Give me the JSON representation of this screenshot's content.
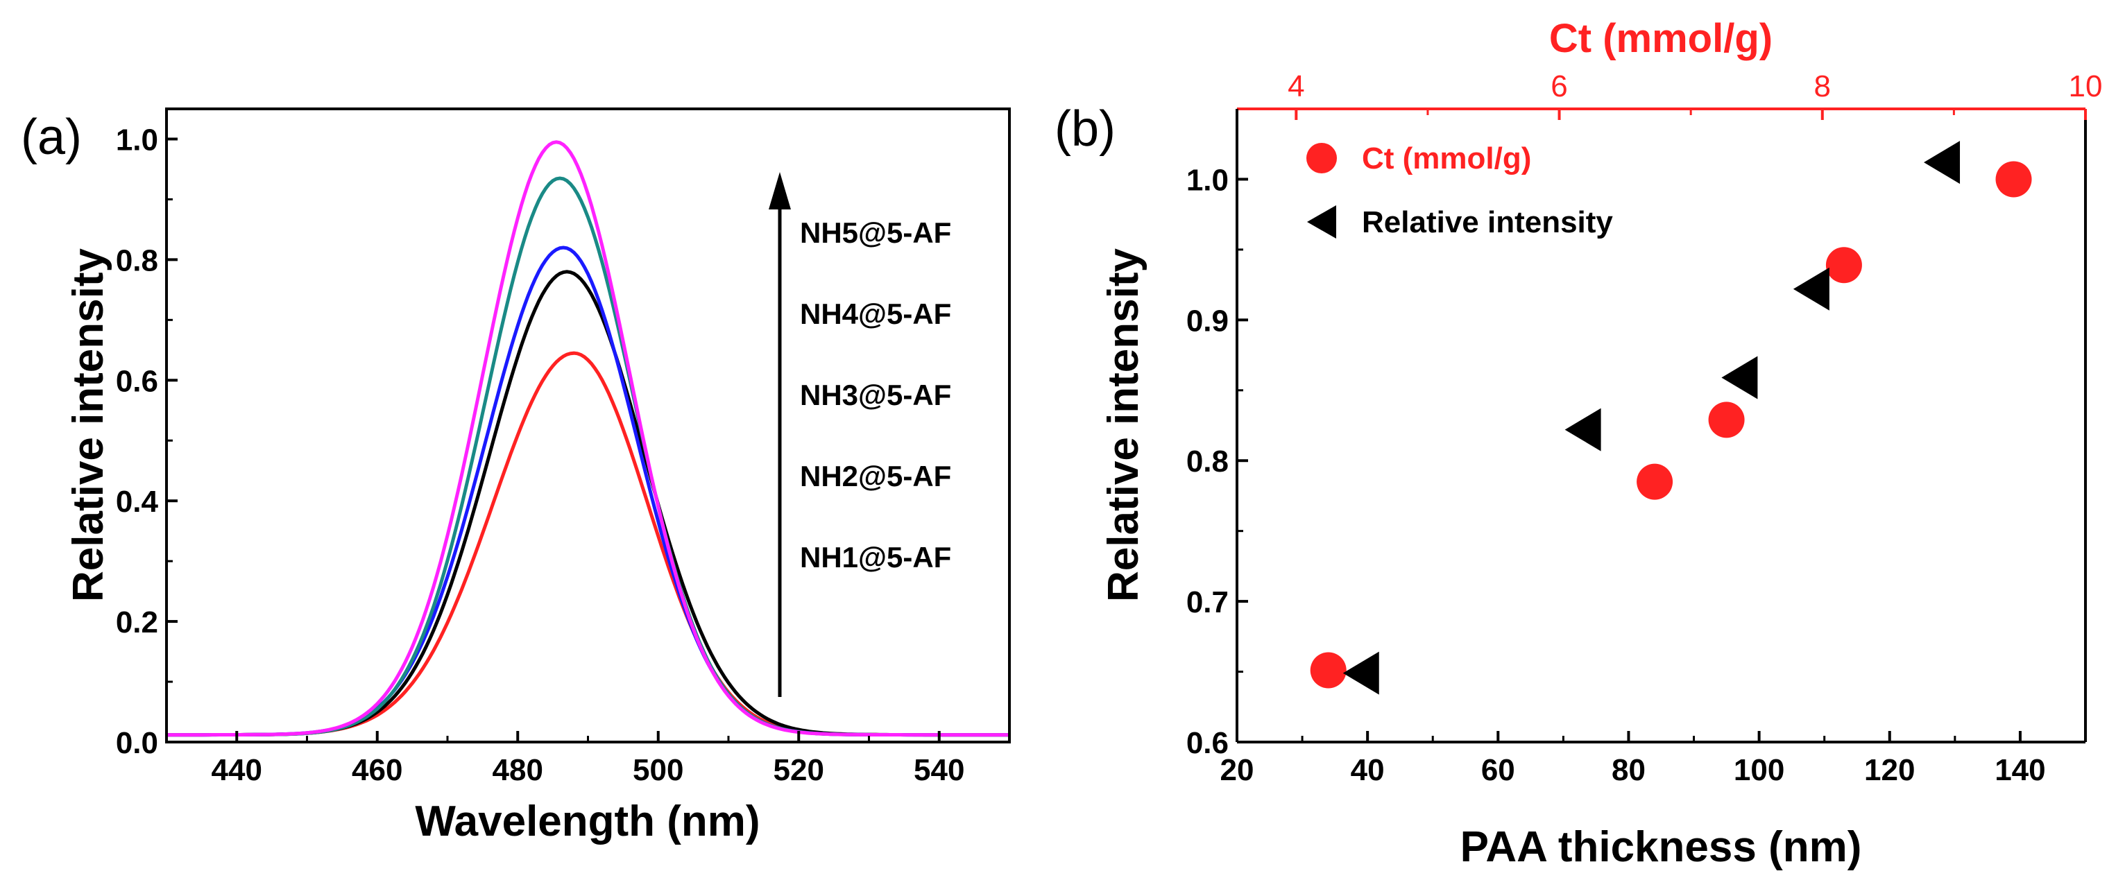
{
  "chart_data": [
    {
      "panel_label": "(a)",
      "type": "line",
      "xlabel": "Wavelength (nm)",
      "ylabel": "Relative intensity",
      "xlim": [
        430,
        550
      ],
      "ylim": [
        0.0,
        1.05
      ],
      "x_ticks": [
        "440",
        "460",
        "480",
        "500",
        "520",
        "540"
      ],
      "y_ticks": [
        "0.0",
        "0.2",
        "0.4",
        "0.6",
        "0.8",
        "1.0"
      ],
      "legend": [
        "NH5@5-AF",
        "NH4@5-AF",
        "NH3@5-AF",
        "NH2@5-AF",
        "NH1@5-AF"
      ],
      "arrow_direction": "up",
      "series": [
        {
          "name": "NH1@5-AF",
          "color": "#ff2222",
          "peak_x": 488,
          "peak_y": 0.645,
          "sigma_left": 11.5,
          "sigma_right": 10.5
        },
        {
          "name": "NH2@5-AF",
          "color": "#000000",
          "peak_x": 487,
          "peak_y": 0.78,
          "sigma_left": 11,
          "sigma_right": 11
        },
        {
          "name": "NH3@5-AF",
          "color": "#1a1aff",
          "peak_x": 486.5,
          "peak_y": 0.82,
          "sigma_left": 11,
          "sigma_right": 10.5
        },
        {
          "name": "NH4@5-AF",
          "color": "#1a8a86",
          "peak_x": 486,
          "peak_y": 0.935,
          "sigma_left": 10.5,
          "sigma_right": 10.5
        },
        {
          "name": "NH5@5-AF",
          "color": "#ff22ff",
          "peak_x": 485.5,
          "peak_y": 0.995,
          "sigma_left": 10.5,
          "sigma_right": 10.5
        }
      ]
    },
    {
      "panel_label": "(b)",
      "type": "scatter",
      "xlabel": "PAA thickness (nm)",
      "ylabel": "Relative intensity",
      "top_xlabel": "Ct (mmol/g)",
      "xlim": [
        20,
        150
      ],
      "ylim": [
        0.6,
        1.05
      ],
      "top_xlim": [
        3.55,
        10
      ],
      "x_ticks": [
        "20",
        "40",
        "60",
        "80",
        "100",
        "120",
        "140"
      ],
      "y_ticks": [
        "0.6",
        "0.7",
        "0.8",
        "0.9",
        "1.0"
      ],
      "top_x_ticks": [
        "4",
        "6",
        "8",
        "10"
      ],
      "legend": [
        "Ct (mmol/g)",
        "Relative intensity"
      ],
      "series": [
        {
          "name": "Ct (mmol/g)",
          "color": "#ff2222",
          "marker": "circle",
          "points": [
            [
              34,
              0.651
            ],
            [
              84,
              0.785
            ],
            [
              95,
              0.829
            ],
            [
              113,
              0.939
            ],
            [
              139,
              1.0
            ]
          ]
        },
        {
          "name": "Relative intensity",
          "color": "#000000",
          "marker": "triangle-left",
          "points": [
            [
              39,
              0.649
            ],
            [
              73,
              0.822
            ],
            [
              97,
              0.859
            ],
            [
              108,
              0.922
            ],
            [
              128,
              1.012
            ]
          ]
        }
      ]
    }
  ]
}
